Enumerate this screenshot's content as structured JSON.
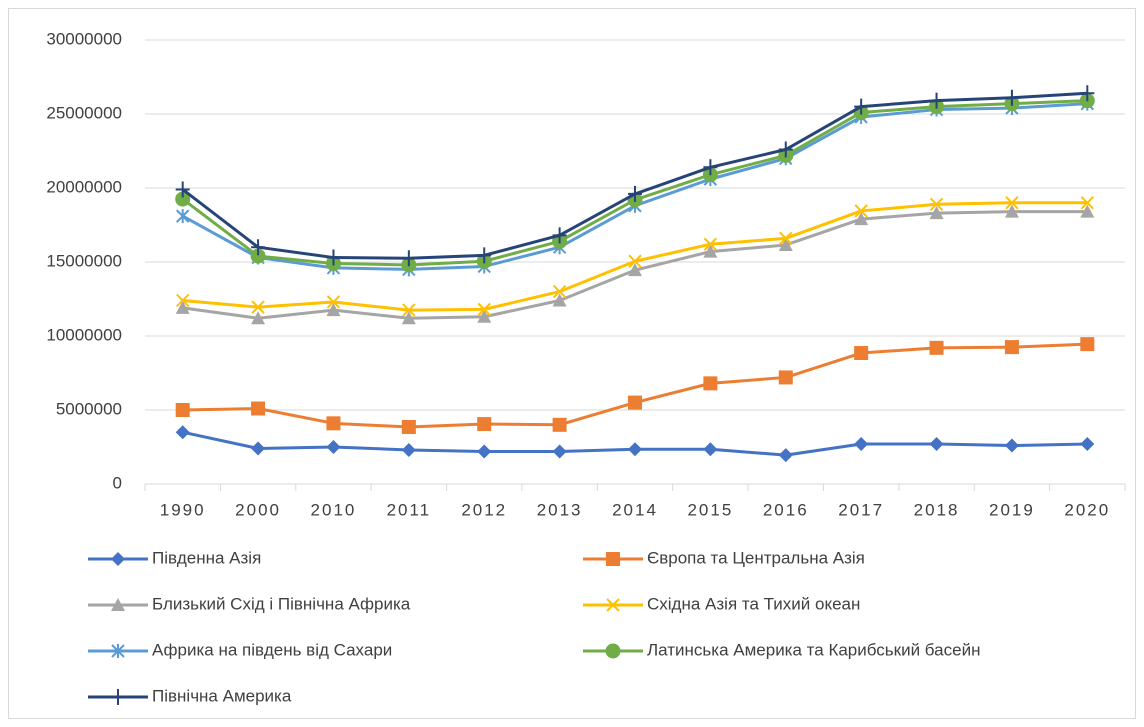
{
  "chart_data": {
    "type": "line",
    "categories": [
      "1990",
      "2000",
      "2010",
      "2011",
      "2012",
      "2013",
      "2014",
      "2015",
      "2016",
      "2017",
      "2018",
      "2019",
      "2020"
    ],
    "ylim": [
      0,
      30000000
    ],
    "yticks": [
      0,
      5000000,
      10000000,
      15000000,
      20000000,
      25000000,
      30000000
    ],
    "grid": true,
    "series": [
      {
        "name": "Південна Азія",
        "color": "#4472c4",
        "marker": "diamond",
        "values": [
          3500000,
          2400000,
          2500000,
          2300000,
          2200000,
          2200000,
          2350000,
          2350000,
          1950000,
          2700000,
          2700000,
          2600000,
          2700000
        ]
      },
      {
        "name": "Європа та Центральна Азія",
        "color": "#ed7d31",
        "marker": "square",
        "values": [
          5000000,
          5100000,
          4100000,
          3850000,
          4050000,
          4000000,
          5500000,
          6800000,
          7200000,
          8850000,
          9200000,
          9250000,
          9450000
        ]
      },
      {
        "name": "Близький Схід і Північна Африка",
        "color": "#a5a5a5",
        "marker": "triangle",
        "values": [
          11900000,
          11200000,
          11750000,
          11200000,
          11300000,
          12400000,
          14450000,
          15700000,
          16150000,
          17900000,
          18300000,
          18400000,
          18400000
        ]
      },
      {
        "name": "Східна Азія та Тихий океан",
        "color": "#ffc000",
        "marker": "x",
        "values": [
          12400000,
          11950000,
          12300000,
          11750000,
          11800000,
          13000000,
          15050000,
          16200000,
          16600000,
          18450000,
          18900000,
          19000000,
          19000000
        ]
      },
      {
        "name": "Африка на південь від Сахари",
        "color": "#5b9bd5",
        "marker": "star",
        "values": [
          18100000,
          15300000,
          14600000,
          14500000,
          14700000,
          16000000,
          18800000,
          20600000,
          22000000,
          24800000,
          25300000,
          25400000,
          25700000
        ]
      },
      {
        "name": "Латинська Америка та Карибський басейн",
        "color": "#70ad47",
        "marker": "circle",
        "values": [
          19250000,
          15400000,
          14900000,
          14800000,
          15050000,
          16400000,
          19200000,
          20900000,
          22200000,
          25100000,
          25500000,
          25700000,
          25900000
        ]
      },
      {
        "name": "Північна Америка",
        "color": "#264478",
        "marker": "plus",
        "values": [
          19900000,
          16000000,
          15300000,
          15250000,
          15450000,
          16800000,
          19600000,
          21400000,
          22600000,
          25500000,
          25900000,
          26100000,
          26400000
        ]
      }
    ]
  }
}
